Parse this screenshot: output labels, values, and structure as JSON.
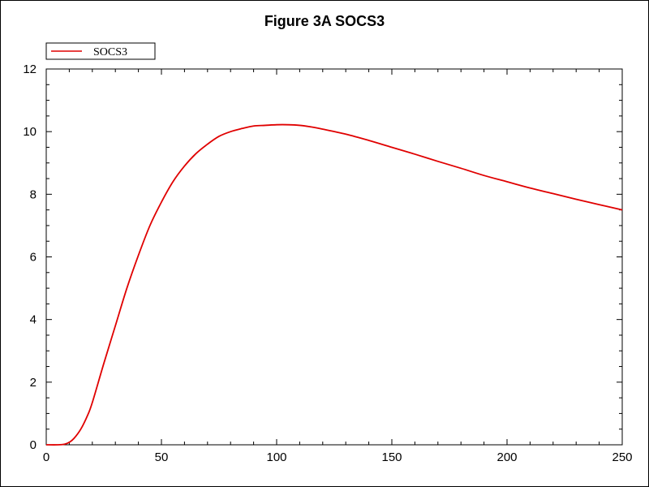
{
  "chart_data": {
    "type": "line",
    "title": "Figure 3A SOCS3",
    "xlabel": "",
    "ylabel": "",
    "xlim": [
      0,
      250
    ],
    "ylim": [
      0,
      12
    ],
    "x_ticks": [
      "0",
      "50",
      "100",
      "150",
      "200",
      "250"
    ],
    "y_ticks": [
      "0",
      "2",
      "4",
      "6",
      "8",
      "10",
      "12"
    ],
    "grid": false,
    "legend": {
      "placement": "top-left",
      "entries": [
        "SOCS3"
      ]
    },
    "series": [
      {
        "name": "SOCS3",
        "color": "#e00000",
        "x": [
          0,
          5,
          8,
          10,
          12,
          15,
          18,
          20,
          25,
          30,
          35,
          40,
          45,
          50,
          55,
          60,
          65,
          70,
          75,
          80,
          85,
          90,
          95,
          100,
          105,
          110,
          115,
          120,
          130,
          140,
          150,
          160,
          170,
          180,
          190,
          200,
          210,
          220,
          230,
          240,
          250
        ],
        "y": [
          0,
          0,
          0.02,
          0.08,
          0.2,
          0.5,
          0.95,
          1.35,
          2.6,
          3.8,
          5.0,
          6.05,
          7.0,
          7.75,
          8.4,
          8.9,
          9.3,
          9.6,
          9.85,
          10.0,
          10.1,
          10.18,
          10.2,
          10.22,
          10.22,
          10.2,
          10.15,
          10.08,
          9.92,
          9.72,
          9.5,
          9.28,
          9.05,
          8.83,
          8.6,
          8.4,
          8.2,
          8.02,
          7.84,
          7.67,
          7.5
        ]
      }
    ]
  }
}
